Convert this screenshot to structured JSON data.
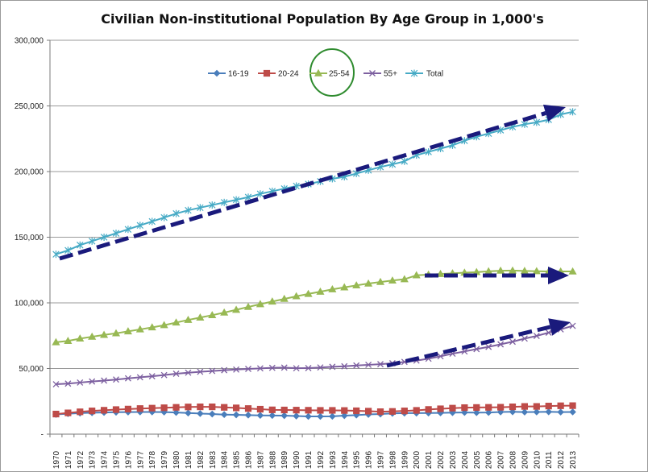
{
  "chart_data": {
    "type": "line",
    "title": "Civilian Non-institutional  Population By Age Group  in 1,000's",
    "xlabel": "",
    "ylabel": "",
    "ylim": [
      0,
      300000
    ],
    "y_ticks": [
      0,
      50000,
      100000,
      150000,
      200000,
      250000,
      300000
    ],
    "y_tick_labels": [
      "-",
      "50,000",
      "100,000",
      "150,000",
      "200,000",
      "250,000",
      "300,000"
    ],
    "grid": "horizontal",
    "legend_position": "top-center",
    "x": [
      "1970",
      "1971",
      "1972",
      "1973",
      "1974",
      "1975",
      "1976",
      "1977",
      "1978",
      "1979",
      "1980",
      "1981",
      "1982",
      "1983",
      "1984",
      "1985",
      "1986",
      "1987",
      "1988",
      "1989",
      "1990",
      "1991",
      "1992",
      "1993",
      "1994",
      "1995",
      "1996",
      "1997",
      "1998",
      "1999",
      "2000",
      "2001",
      "2002",
      "2003",
      "2004",
      "2005",
      "2006",
      "2007",
      "2008",
      "2009",
      "2010",
      "2011",
      "2012",
      "2013"
    ],
    "series": [
      {
        "name": "16-19",
        "color": "#4a7ebb",
        "marker": "diamond",
        "values": [
          15000,
          15600,
          16000,
          16300,
          16500,
          16700,
          16800,
          16900,
          16900,
          16800,
          16500,
          16100,
          15700,
          15300,
          14900,
          14700,
          14500,
          14300,
          14200,
          14100,
          13800,
          13500,
          13500,
          13600,
          14100,
          14500,
          15000,
          15300,
          15800,
          16000,
          16000,
          16100,
          16200,
          16400,
          16500,
          16400,
          16500,
          16900,
          17000,
          16800,
          16900,
          17000,
          16800,
          16900
        ]
      },
      {
        "name": "20-24",
        "color": "#be4b48",
        "marker": "square",
        "values": [
          15300,
          16200,
          17000,
          17700,
          18200,
          18700,
          19100,
          19500,
          19800,
          20100,
          20400,
          20700,
          20800,
          20800,
          20400,
          20000,
          19500,
          19000,
          18500,
          18400,
          18300,
          18200,
          18100,
          18100,
          18000,
          17800,
          17500,
          17100,
          17300,
          17700,
          18100,
          18800,
          19300,
          19800,
          20200,
          20300,
          20400,
          20500,
          20800,
          21100,
          21100,
          21400,
          21600,
          21700
        ]
      },
      {
        "name": "25-54",
        "color": "#98b954",
        "marker": "triangle",
        "values": [
          70000,
          71000,
          72800,
          74200,
          75600,
          76800,
          78300,
          79800,
          81300,
          83000,
          85000,
          87000,
          88800,
          90600,
          92600,
          94700,
          96900,
          99000,
          101000,
          103000,
          105000,
          106800,
          108500,
          110300,
          111800,
          113300,
          114700,
          115900,
          117000,
          118000,
          121000,
          121500,
          122000,
          122500,
          123000,
          123400,
          124000,
          124500,
          124600,
          124300,
          124100,
          123900,
          123900,
          123900
        ]
      },
      {
        "name": "55+",
        "color": "#7d60a0",
        "marker": "x",
        "values": [
          38000,
          38500,
          39300,
          40100,
          40800,
          41600,
          42500,
          43300,
          44100,
          45000,
          46000,
          46800,
          47500,
          48100,
          48700,
          49200,
          49700,
          50100,
          50500,
          50700,
          50200,
          50300,
          50800,
          51300,
          51700,
          52300,
          52800,
          53300,
          54000,
          55000,
          56000,
          57500,
          59300,
          61300,
          63000,
          64800,
          66500,
          68400,
          70400,
          72800,
          74800,
          77300,
          79800,
          82500
        ]
      },
      {
        "name": "Total",
        "color": "#46aac5",
        "marker": "star",
        "values": [
          137000,
          140000,
          144000,
          147000,
          150000,
          153000,
          156000,
          159000,
          162000,
          165000,
          168000,
          170500,
          172500,
          174500,
          176500,
          178500,
          180500,
          183000,
          185000,
          187000,
          189000,
          190500,
          192500,
          194500,
          196000,
          198500,
          201000,
          203500,
          205500,
          207800,
          212500,
          215000,
          217500,
          220000,
          223500,
          226500,
          229000,
          231500,
          234000,
          236000,
          237500,
          239500,
          243500,
          245500
        ]
      }
    ],
    "annotation_arrow_color": "#1a1a7c",
    "annotation_circle_color": "#2e8b2e"
  }
}
